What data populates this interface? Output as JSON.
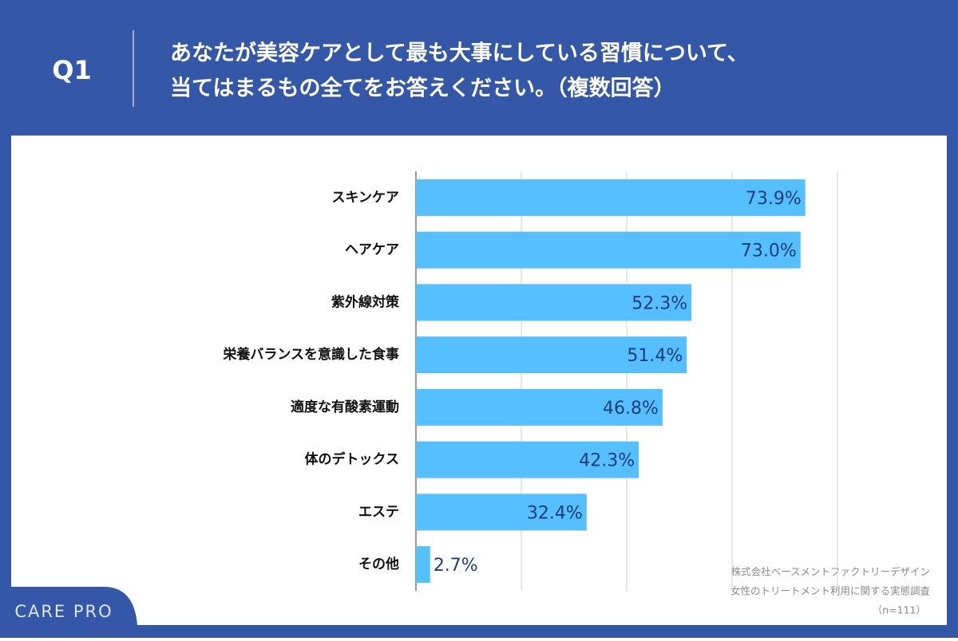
{
  "header": {
    "number": "Q1",
    "question_lines": [
      "あなたが美容ケアとして最も大事にしている習慣について、",
      "当てはまるもの全てをお答えください。（複数回答）"
    ]
  },
  "chart_data": {
    "type": "bar",
    "orientation": "horizontal",
    "categories": [
      "スキンケア",
      "ヘアケア",
      "紫外線対策",
      "栄養バランスを意識した食事",
      "適度な有酸素運動",
      "体のデトックス",
      "エステ",
      "その他"
    ],
    "values": [
      73.9,
      73.0,
      52.3,
      51.4,
      46.8,
      42.3,
      32.4,
      2.7
    ],
    "value_labels": [
      "73.9%",
      "73.0%",
      "52.3%",
      "51.4%",
      "46.8%",
      "42.3%",
      "32.4%",
      "2.7%"
    ],
    "color": "#56bfff",
    "xlim": [
      0,
      80
    ],
    "xticks": [
      0,
      20,
      40,
      60,
      80
    ],
    "grid": true
  },
  "source": [
    "株式会社ベースメントファクトリーデザイン",
    "女性のトリートメント利用に関する実態調査",
    "（n=111）"
  ],
  "brand": "CARE PRO"
}
